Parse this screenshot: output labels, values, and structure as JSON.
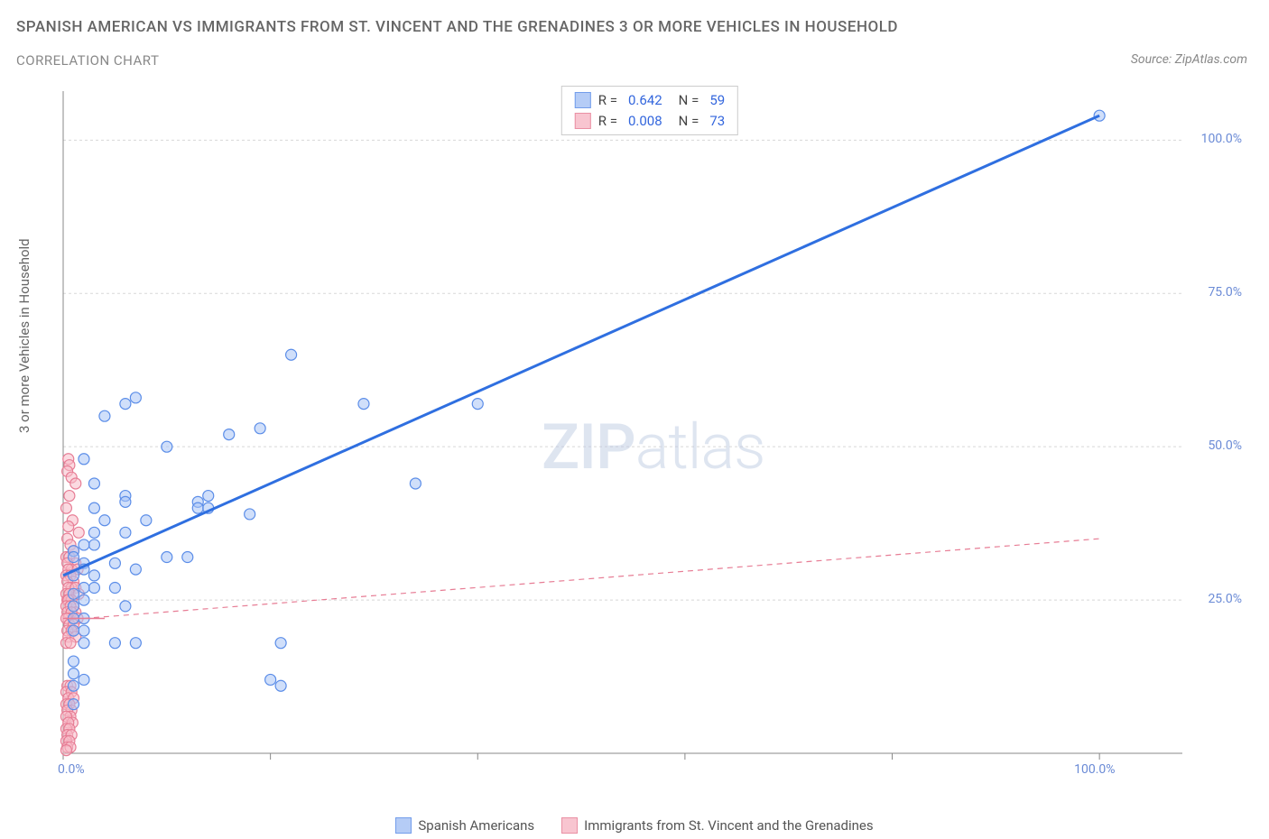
{
  "title": "SPANISH AMERICAN VS IMMIGRANTS FROM ST. VINCENT AND THE GRENADINES 3 OR MORE VEHICLES IN HOUSEHOLD",
  "subtitle": "CORRELATION CHART",
  "source": "Source: ZipAtlas.com",
  "ylabel": "3 or more Vehicles in Household",
  "watermark_bold": "ZIP",
  "watermark_thin": "atlas",
  "chart": {
    "type": "scatter",
    "xlim": [
      0,
      108
    ],
    "ylim": [
      0,
      108
    ],
    "grid_color": "#d8d8d8",
    "grid_dash": "3,3",
    "axis_color": "#888888",
    "x_ticks": [
      0,
      20,
      40,
      60,
      80,
      100
    ],
    "y_ticks_right": [
      25,
      50,
      75,
      100
    ],
    "x_tick_labels": {
      "0": "0.0%",
      "100": "100.0%"
    },
    "y_tick_labels": {
      "25": "25.0%",
      "50": "50.0%",
      "75": "75.0%",
      "100": "100.0%"
    },
    "background": "#ffffff",
    "marker_radius": 6,
    "marker_stroke_width": 1.2,
    "series": [
      {
        "key": "blue",
        "label": "Spanish Americans",
        "fill": "#a9c4f5",
        "fill_opacity": 0.55,
        "stroke": "#5b8de8",
        "R": "0.642",
        "N": "59",
        "trend": {
          "x1": 0,
          "y1": 29,
          "x2": 100,
          "y2": 104,
          "width": 3,
          "dash": "none",
          "color": "#2f6fe0"
        },
        "points": [
          [
            100,
            104
          ],
          [
            22,
            65
          ],
          [
            6,
            57
          ],
          [
            7,
            58
          ],
          [
            4,
            55
          ],
          [
            29,
            57
          ],
          [
            40,
            57
          ],
          [
            16,
            52
          ],
          [
            19,
            53
          ],
          [
            10,
            50
          ],
          [
            34,
            44
          ],
          [
            2,
            48
          ],
          [
            3,
            44
          ],
          [
            3,
            40
          ],
          [
            6,
            42
          ],
          [
            6,
            41
          ],
          [
            13,
            41
          ],
          [
            14,
            42
          ],
          [
            13,
            40
          ],
          [
            14,
            40
          ],
          [
            18,
            39
          ],
          [
            8,
            38
          ],
          [
            6,
            36
          ],
          [
            4,
            38
          ],
          [
            3,
            36
          ],
          [
            3,
            34
          ],
          [
            2,
            34
          ],
          [
            1,
            33
          ],
          [
            1,
            32
          ],
          [
            2,
            31
          ],
          [
            10,
            32
          ],
          [
            12,
            32
          ],
          [
            5,
            31
          ],
          [
            7,
            30
          ],
          [
            2,
            30
          ],
          [
            1,
            29
          ],
          [
            3,
            29
          ],
          [
            3,
            27
          ],
          [
            5,
            27
          ],
          [
            6,
            24
          ],
          [
            2,
            27
          ],
          [
            2,
            25
          ],
          [
            1,
            26
          ],
          [
            1,
            24
          ],
          [
            1,
            22
          ],
          [
            2,
            22
          ],
          [
            2,
            20
          ],
          [
            1,
            20
          ],
          [
            2,
            18
          ],
          [
            5,
            18
          ],
          [
            7,
            18
          ],
          [
            21,
            18
          ],
          [
            20,
            12
          ],
          [
            21,
            11
          ],
          [
            1,
            15
          ],
          [
            1,
            13
          ],
          [
            1,
            11
          ],
          [
            2,
            12
          ],
          [
            1,
            8
          ]
        ]
      },
      {
        "key": "pink",
        "label": "Immigrants from St. Vincent and the Grenadines",
        "fill": "#f7bcc8",
        "fill_opacity": 0.55,
        "stroke": "#e77d95",
        "R": "0.008",
        "N": "73",
        "trend": {
          "x1": 2,
          "y1": 22,
          "x2": 100,
          "y2": 35,
          "width": 1.2,
          "dash": "6,5",
          "color": "#e77d95"
        },
        "trend_solid_tail": {
          "x1": 0,
          "y1": 22,
          "x2": 4,
          "y2": 22
        },
        "points": [
          [
            0.5,
            48
          ],
          [
            0.6,
            47
          ],
          [
            0.4,
            46
          ],
          [
            0.8,
            45
          ],
          [
            1.2,
            44
          ],
          [
            0.6,
            42
          ],
          [
            0.3,
            40
          ],
          [
            0.9,
            38
          ],
          [
            0.5,
            37
          ],
          [
            1.5,
            36
          ],
          [
            0.4,
            35
          ],
          [
            0.7,
            34
          ],
          [
            1.0,
            33
          ],
          [
            0.3,
            32
          ],
          [
            0.6,
            32
          ],
          [
            1.2,
            31
          ],
          [
            0.4,
            31
          ],
          [
            0.8,
            30
          ],
          [
            0.5,
            30
          ],
          [
            1.4,
            30
          ],
          [
            0.3,
            29
          ],
          [
            0.7,
            29
          ],
          [
            1.0,
            28
          ],
          [
            0.4,
            28
          ],
          [
            0.8,
            27
          ],
          [
            0.5,
            27
          ],
          [
            1.2,
            27
          ],
          [
            0.3,
            26
          ],
          [
            0.6,
            26
          ],
          [
            1.5,
            26
          ],
          [
            0.4,
            25
          ],
          [
            0.8,
            25
          ],
          [
            0.5,
            25
          ],
          [
            1.0,
            24
          ],
          [
            0.3,
            24
          ],
          [
            0.7,
            24
          ],
          [
            1.2,
            23
          ],
          [
            0.4,
            23
          ],
          [
            0.8,
            23
          ],
          [
            0.5,
            22
          ],
          [
            1.4,
            22
          ],
          [
            0.3,
            22
          ],
          [
            0.6,
            21
          ],
          [
            1.0,
            21
          ],
          [
            0.4,
            20
          ],
          [
            0.8,
            20
          ],
          [
            0.5,
            19
          ],
          [
            1.2,
            19
          ],
          [
            0.3,
            18
          ],
          [
            0.7,
            18
          ],
          [
            0.4,
            11
          ],
          [
            0.7,
            11
          ],
          [
            0.3,
            10
          ],
          [
            0.8,
            10
          ],
          [
            0.5,
            9
          ],
          [
            1.0,
            9
          ],
          [
            0.3,
            8
          ],
          [
            0.6,
            8
          ],
          [
            0.8,
            7
          ],
          [
            0.4,
            7
          ],
          [
            0.7,
            6
          ],
          [
            0.3,
            6
          ],
          [
            0.9,
            5
          ],
          [
            0.5,
            5
          ],
          [
            0.3,
            4
          ],
          [
            0.6,
            4
          ],
          [
            0.4,
            3
          ],
          [
            0.8,
            3
          ],
          [
            0.3,
            2
          ],
          [
            0.6,
            2
          ],
          [
            0.4,
            1
          ],
          [
            0.7,
            1
          ],
          [
            0.3,
            0.5
          ]
        ]
      }
    ]
  },
  "legend_labels": {
    "R": "R =",
    "N": "N ="
  }
}
